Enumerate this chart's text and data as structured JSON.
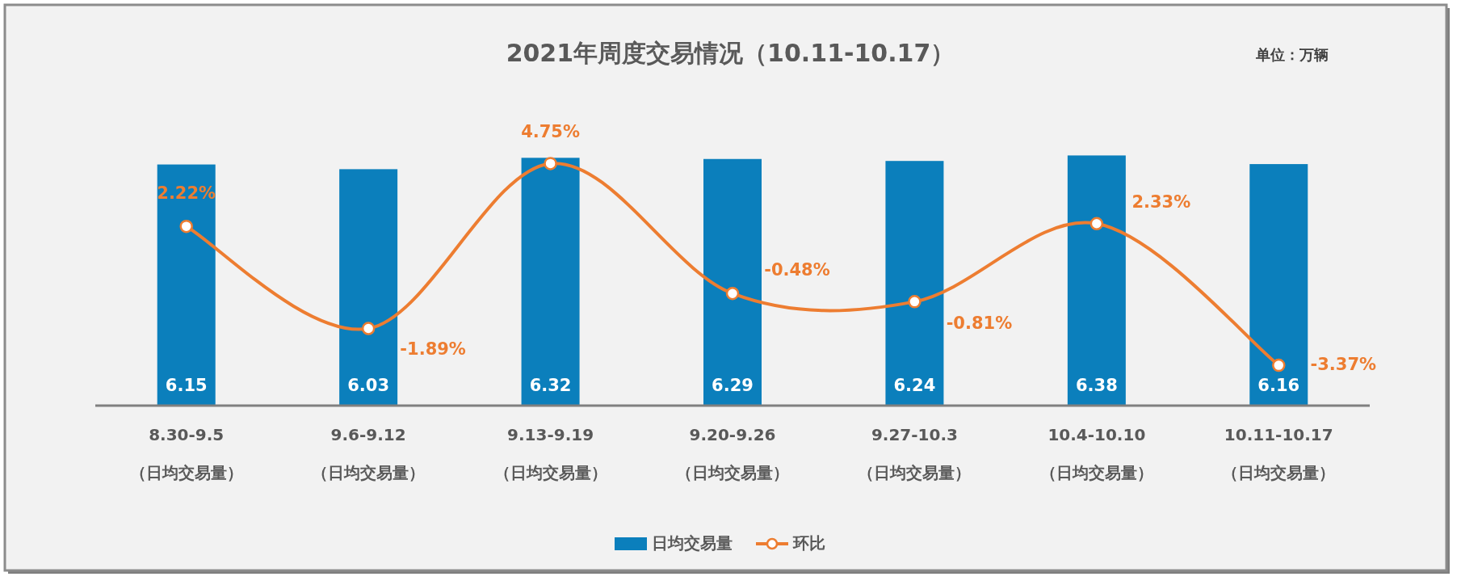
{
  "chart_data": {
    "type": "bar",
    "title": "2021年周度交易情况（10.11-10.17）",
    "annotations": [
      "单位：万辆"
    ],
    "categories": [
      "8.30-9.5\n（日均交易量）",
      "9.6-9.12\n（日均交易量）",
      "9.13-9.19\n（日均交易量）",
      "9.20-9.26\n（日均交易量）",
      "9.27-10.3\n（日均交易量）",
      "10.4-10.10\n（日均交易量）",
      "10.11-10.17\n（日均交易量）"
    ],
    "series": [
      {
        "name": "日均交易量",
        "color": "#0b7fbc",
        "values": [
          6.15,
          6.03,
          6.32,
          6.29,
          6.24,
          6.38,
          6.16
        ]
      },
      {
        "name": "环比",
        "type": "line",
        "axis": "y2",
        "color": "#ed7d31",
        "values": [
          2.22,
          -1.89,
          4.75,
          -0.48,
          -0.81,
          2.33,
          -3.37
        ],
        "value_labels": [
          "2.22%",
          "-1.89%",
          "4.75%",
          "-0.48%",
          "-0.81%",
          "2.33%",
          "-3.37%"
        ]
      }
    ],
    "data_labels": true,
    "marker": "circle",
    "line_style": "solid",
    "legend": "bottom",
    "tick_labels": "x"
  }
}
